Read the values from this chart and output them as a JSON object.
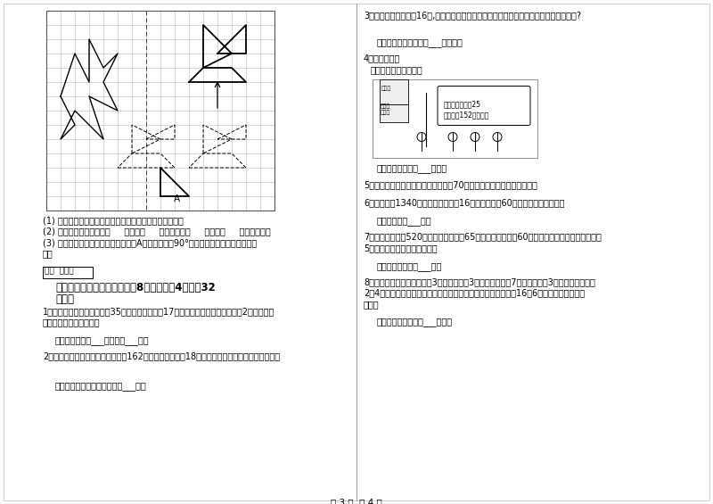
{
  "page_bg": "#ffffff",
  "text_color": "#000000",
  "left_q1": "1．一个车间，女工比男工少35人，男女工各调出17人后，男工人数是女工人数的2倍，原有男工多少人？女工多少人？",
  "left_q1_ans": "答：原来有男工___人，女工___人。",
  "left_q2": "2．学校举行运动会，参加跑步的有162人，参加跳绳的有18人，参加跑步的人数是跳绳的几倍？",
  "left_q2_ans": "答：参加跑步的人数是跳绳的___倍。",
  "right_q3": "3．一个长方形周长是16米,它的长、宽的米数是两个相邻，这个长方形面积是多少平方米?",
  "right_q3_ans": "答：这个长方形面积是___平方米。",
  "right_q4_intro": "4．看图解题。",
  "right_q4_sub": "她们一共要付多少钱？",
  "right_q4_ans": "答：她们一共要付___元钱。",
  "right_q5": "5．已知一个等腰三角形的一个顶角是70，，它的每一个底角是多少度？",
  "right_q6": "6．刘叔叔带1340元去买化肥，买了16袋化费，剩下60元，每袋化肥多少元？",
  "right_q6_ans": "答：每袋化肥___元。",
  "right_q7_a": "7．小乐家到学校520米，小乐每分钟走65米，小红每分钟走60米，从家到学校小红比小乐多走",
  "right_q7_b": "5分钟，小红家离学校多少米？",
  "right_q7_ans": "答：小红家离学校___米。",
  "right_q8_a": "8．某市出租车收费标准为：3千米以内（含3千米）按起步价7元收费，超过3千米，每千米收费",
  "right_q8_b": "2元4角。有一天，小明一家坐一辆出租车到太阳宫玩，一共付费16元6角。小明家离太阳宫",
  "right_q8_c": "多远？",
  "right_q8_ans": "答：小明家离太阳宫___千米。",
  "page_footer": "第 3 页  共 4 页",
  "section_header_1": "六、应用知识，解决问题（共8小题，每题4分，共32",
  "section_header_2": "分）。",
  "score_label": "得分  评卷人",
  "grid_line1": "(1) 沿虚线画出图形的另一半，使它成为一个轴对称图形。",
  "grid_line2": "(2) 图中的小船是经过向（     ）平移（     ）格，再向（     ）平移（     ）格得来的。",
  "grid_line3_a": "(3) 先将三角形向左平移三格，然后绕A点逆时针旋转90°，在方格纸中画出旋转后的图",
  "grid_line3_b": "形。",
  "bubble_text1": "四年级夏令营有25",
  "bubble_text2": "名老师和152名学生。"
}
